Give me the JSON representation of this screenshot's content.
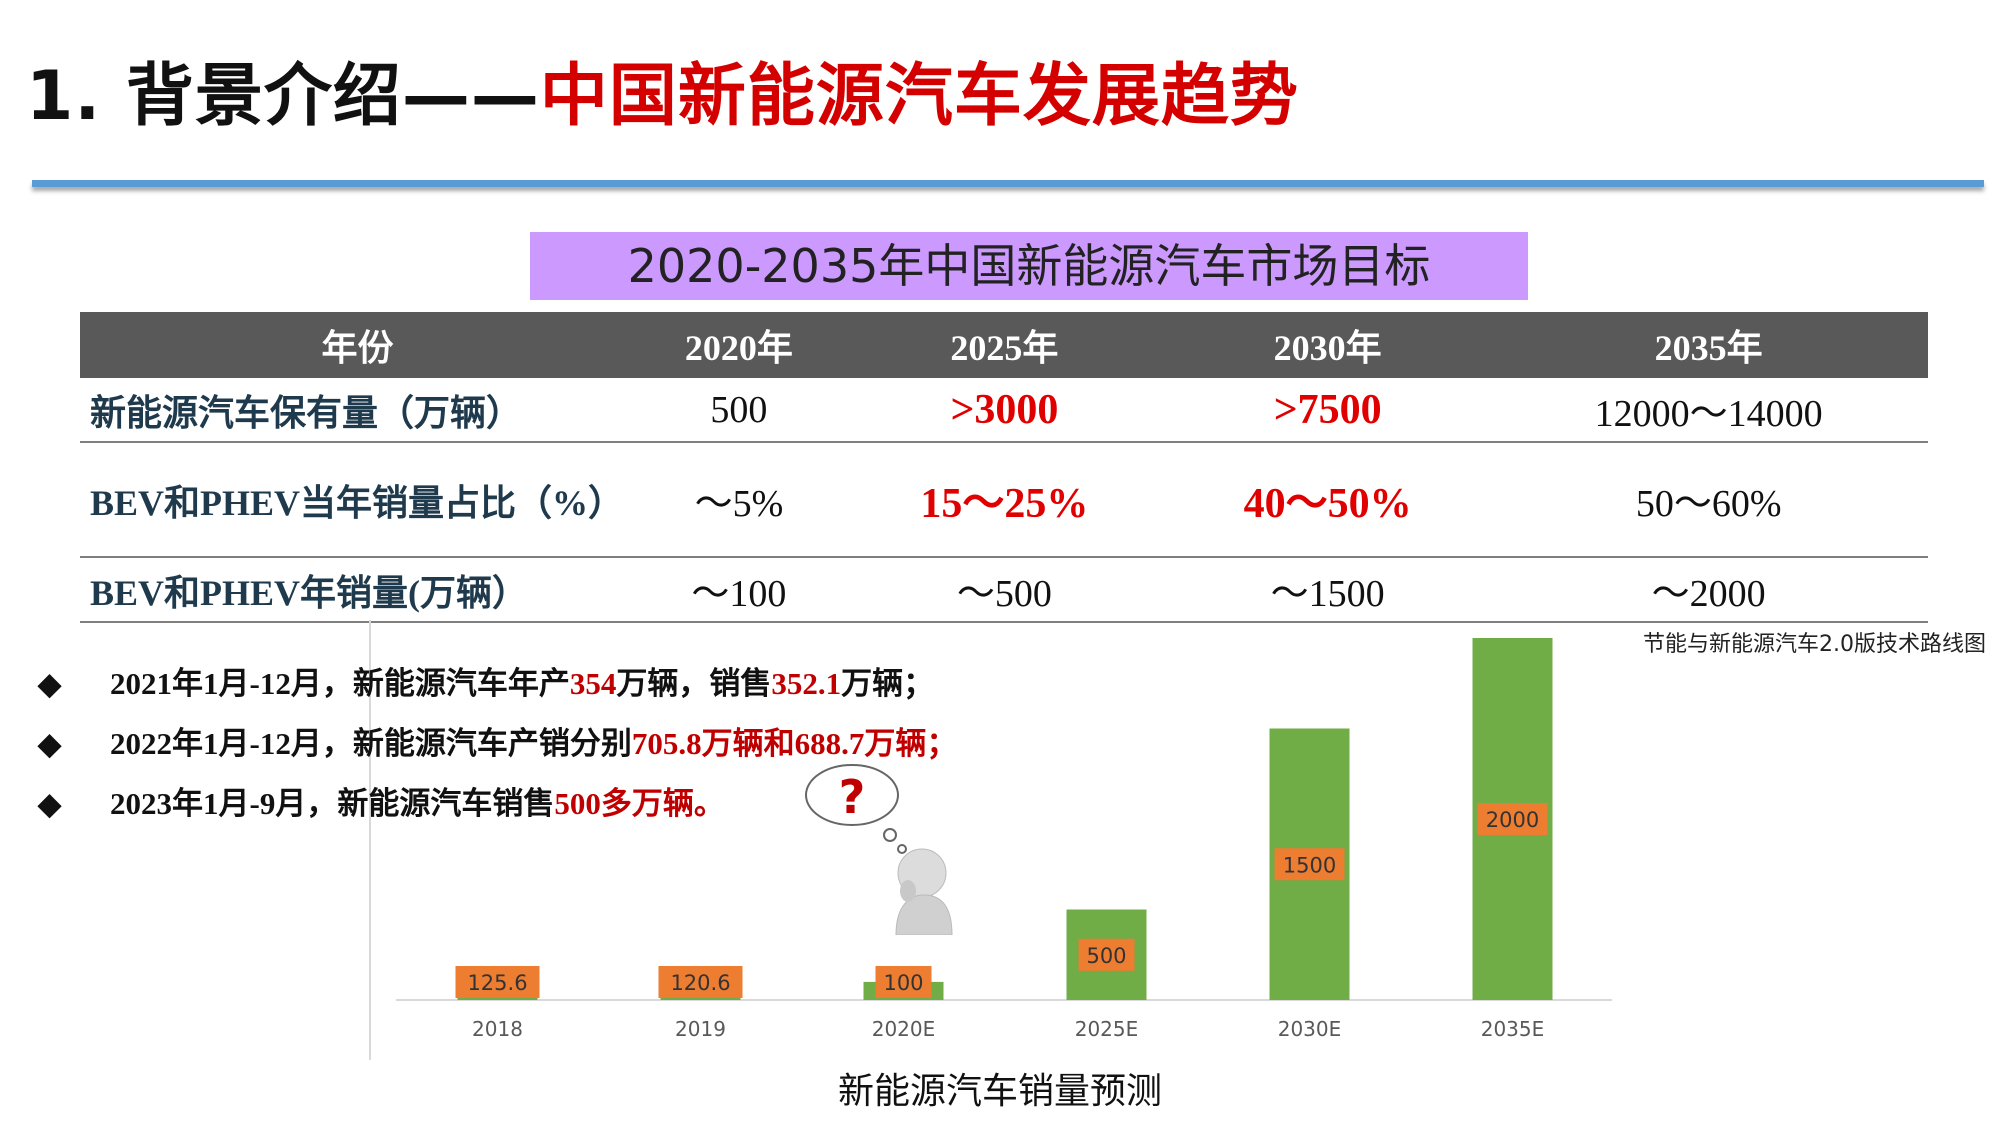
{
  "title": {
    "prefix": "1. 背景介绍——",
    "main": "中国新能源汽车发展趋势"
  },
  "table": {
    "banner": "2020-2035年中国新能源汽车市场目标",
    "headers": [
      "年份",
      "2020年",
      "2025年",
      "2030年",
      "2035年"
    ],
    "rows": [
      {
        "label": "新能源汽车保有量（万辆）",
        "cells": [
          "500",
          ">3000",
          ">7500",
          "12000～14000"
        ]
      },
      {
        "label": "BEV和PHEV当年销量占比（%）",
        "cells": [
          "～5%",
          "15～25%",
          "40～50%",
          "50～60%"
        ]
      },
      {
        "label": "BEV和PHEV年销量(万辆）",
        "cells": [
          "～100",
          "～500",
          "～1500",
          "～2000"
        ]
      }
    ],
    "highlight_color": "#e00000"
  },
  "source_note": "节能与新能源汽车2.0版技术路线图",
  "bullets": [
    {
      "a": "2021年1月-12月，新能源汽车年产",
      "b": "354",
      "c": "万辆，销售",
      "d": "352.1",
      "e": "万辆；"
    },
    {
      "a": "2022年1月-12月，新能源汽车产销分别",
      "b": "705.8万辆和688.7万辆；",
      "c": "",
      "d": "",
      "e": ""
    },
    {
      "a": "2023年1月-9月，新能源汽车销售",
      "b": "500多万辆。",
      "c": "",
      "d": "",
      "e": ""
    }
  ],
  "bullet_marker": "◆",
  "thinker": {
    "bubble_glyph": "?"
  },
  "chart_data": {
    "type": "bar",
    "title": "新能源汽车销量预测",
    "categories": [
      "2018",
      "2019",
      "2020E",
      "2025E",
      "2030E",
      "2035E"
    ],
    "values": [
      125.6,
      120.6,
      100,
      500,
      1500,
      2000
    ],
    "data_labels": [
      "125.6",
      "120.6",
      "100",
      "500",
      "1500",
      "2000"
    ],
    "ylim": [
      0,
      2000
    ],
    "grid": false,
    "colors": {
      "bar": "#70ad47",
      "label_box": "#ed7d31",
      "axis": "#d9d9d9",
      "tick_text": "#595959"
    }
  }
}
